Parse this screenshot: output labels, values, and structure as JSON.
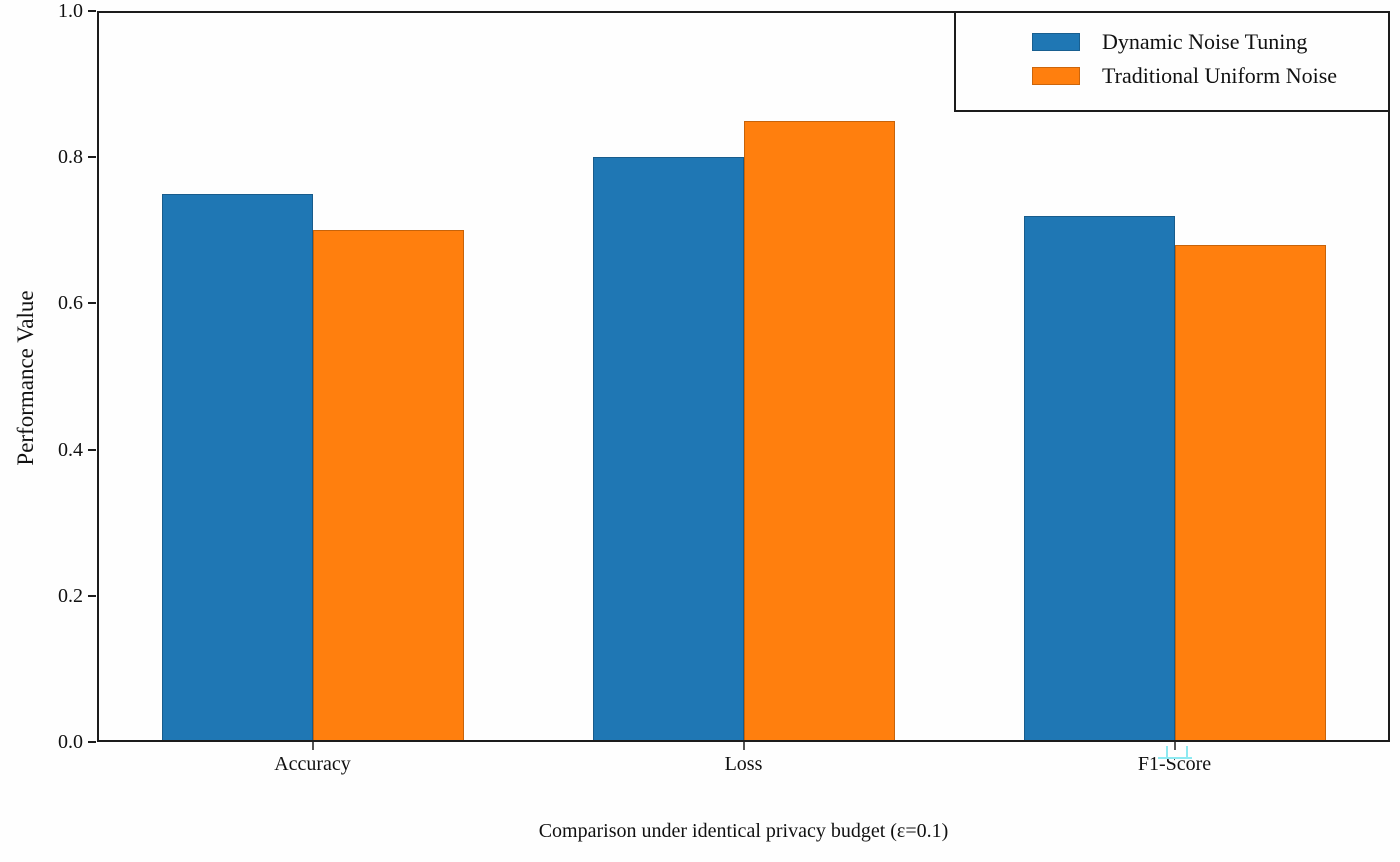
{
  "chart_data": {
    "type": "bar",
    "title": "",
    "categories": [
      "Accuracy",
      "Loss",
      "F1-Score"
    ],
    "series": [
      {
        "name": "Dynamic Noise Tuning",
        "color": "#1f77b4",
        "values": [
          0.75,
          0.8,
          0.72
        ]
      },
      {
        "name": "Traditional Uniform Noise",
        "color": "#ff7f0e",
        "values": [
          0.7,
          0.85,
          0.68
        ]
      }
    ],
    "xlabel": "Comparison under identical privacy budget (ε=0.1)",
    "ylabel": "Performance Value",
    "ylim": [
      0.0,
      1.0
    ],
    "yticks": [
      0.0,
      0.2,
      0.4,
      0.6,
      0.8,
      1.0
    ],
    "grid": false,
    "legend_position": "upper right",
    "legend_border": true
  }
}
